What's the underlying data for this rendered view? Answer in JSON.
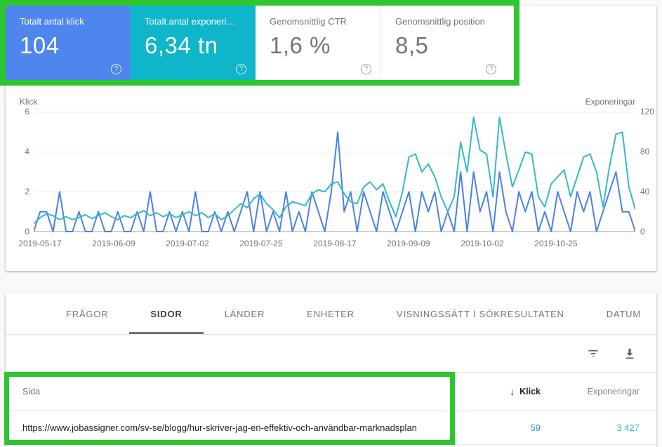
{
  "annotation": {
    "color": "#2ec62e"
  },
  "cards": {
    "colors": {
      "clicks_bg": "#4e86ee",
      "impressions_bg": "#0fb5c9"
    },
    "help_glyph": "?",
    "items": [
      {
        "label": "Totalt antal klick",
        "value": "104"
      },
      {
        "label": "Totalt antal exponeri…",
        "value": "6,34 tn"
      },
      {
        "label": "Genomsnittlig CTR",
        "value": "1,6 %"
      },
      {
        "label": "Genomsnittlig position",
        "value": "8,5"
      }
    ]
  },
  "chart_data": {
    "type": "line",
    "title": "",
    "left_axis": {
      "label": "Klick",
      "max": 6,
      "ticks_display": [
        "6",
        "4",
        "2",
        "0"
      ]
    },
    "right_axis": {
      "label": "Exponeringar",
      "max": 120,
      "ticks_display": [
        "120",
        "80",
        "40",
        "0"
      ]
    },
    "x_tick_labels": [
      "2019-05-17",
      "2019-06-09",
      "2019-07-02",
      "2019-07-25",
      "2019-08-17",
      "2019-09-09",
      "2019-10-02",
      "2019-10-25"
    ],
    "x_tick_positions_pct": [
      1.05,
      13.3,
      25.55,
      37.8,
      50.05,
      62.3,
      74.55,
      86.8
    ],
    "grid": true,
    "legend_position": "none",
    "series": [
      {
        "name": "Klick",
        "axis": "left",
        "color": "#4b80e8",
        "values": [
          0,
          1,
          1,
          0,
          2,
          0,
          0,
          1,
          0,
          0,
          1,
          0,
          0,
          1,
          0,
          0,
          1,
          0,
          2,
          0,
          0,
          1,
          0,
          1,
          0,
          2,
          0,
          0,
          1,
          0,
          1,
          0,
          1,
          2,
          0,
          2,
          0,
          1,
          0,
          2,
          0,
          1,
          0,
          2,
          1,
          0,
          2,
          5,
          1,
          2,
          0,
          2,
          1,
          0,
          2,
          1,
          0,
          1,
          2,
          0,
          2,
          1,
          2,
          0,
          1,
          0,
          3,
          0,
          3,
          1,
          2,
          0,
          3,
          1,
          0,
          2,
          1,
          2,
          0,
          1,
          0,
          2,
          1,
          0,
          2,
          1,
          2,
          0,
          1,
          2,
          3,
          1,
          1,
          0
        ]
      },
      {
        "name": "Exponeringar",
        "axis": "right",
        "color": "#33b9c7",
        "values": [
          8,
          14,
          18,
          16,
          12,
          15,
          12,
          14,
          17,
          13,
          16,
          19,
          15,
          12,
          16,
          14,
          18,
          21,
          16,
          19,
          15,
          18,
          14,
          17,
          20,
          16,
          19,
          14,
          18,
          12,
          16,
          22,
          28,
          24,
          33,
          38,
          28,
          22,
          14,
          25,
          30,
          28,
          26,
          38,
          42,
          40,
          48,
          50,
          38,
          30,
          28,
          45,
          50,
          42,
          48,
          30,
          15,
          40,
          75,
          78,
          60,
          68,
          55,
          35,
          20,
          35,
          90,
          60,
          115,
          82,
          78,
          35,
          115,
          78,
          45,
          62,
          80,
          78,
          35,
          25,
          48,
          55,
          62,
          35,
          55,
          75,
          78,
          60,
          25,
          65,
          98,
          100,
          45,
          22
        ]
      }
    ]
  },
  "tabs": {
    "active": "SIDOR",
    "items": [
      "FRÅGOR",
      "SIDOR",
      "LÄNDER",
      "ENHETER",
      "VISNINGSSÄTT I SÖKRESULTATEN",
      "DATUM"
    ]
  },
  "table": {
    "headers": {
      "page": "Sida",
      "clicks": "Klick",
      "impressions": "Exponeringar",
      "sort_arrow": "↓"
    },
    "rows": [
      {
        "page": "https://www.jobassigner.com/sv-se/blogg/hur-skriver-jag-en-effektiv-och-användbar-marknadsplan",
        "clicks": "59",
        "impressions": "3 427"
      }
    ]
  }
}
